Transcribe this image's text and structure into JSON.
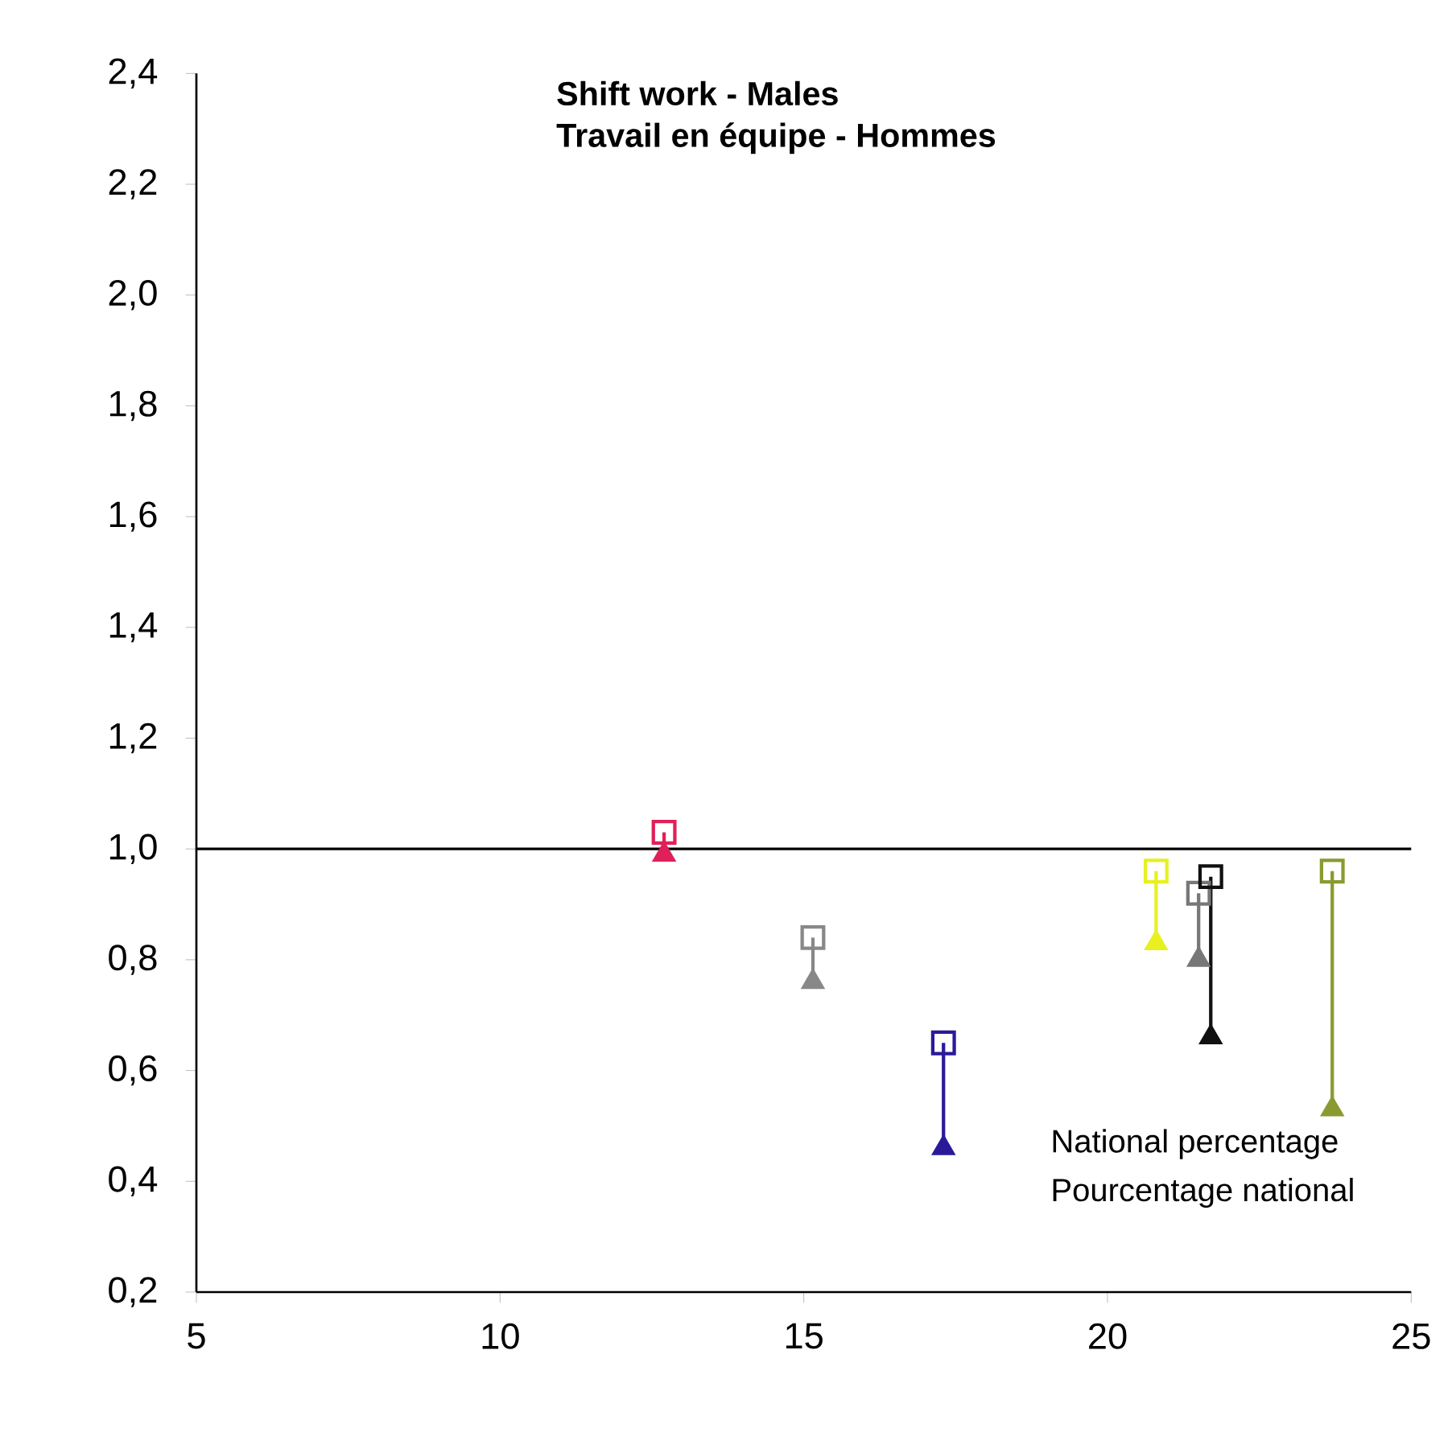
{
  "chart_data": {
    "type": "scatter",
    "title": "Shift work - Males",
    "subtitle": "Travail en équipe - Hommes",
    "xlim": [
      5,
      25
    ],
    "xticks": [
      5,
      10,
      15,
      20,
      25
    ],
    "ylim": [
      0.2,
      2.4
    ],
    "yticks": [
      {
        "value": 0.2,
        "label": "0,2"
      },
      {
        "value": 0.4,
        "label": "0,4"
      },
      {
        "value": 0.6,
        "label": "0,6"
      },
      {
        "value": 0.8,
        "label": "0,8"
      },
      {
        "value": 1.0,
        "label": "1,0"
      },
      {
        "value": 1.2,
        "label": "1,2"
      },
      {
        "value": 1.4,
        "label": "1,4"
      },
      {
        "value": 1.6,
        "label": "1,6"
      },
      {
        "value": 1.8,
        "label": "1,8"
      },
      {
        "value": 2.0,
        "label": "2,0"
      },
      {
        "value": 2.2,
        "label": "2,2"
      },
      {
        "value": 2.4,
        "label": "2,4"
      }
    ],
    "grid": false,
    "ref_lines": [
      {
        "axis": "y",
        "value": 1.0,
        "color": "#000000"
      }
    ],
    "annotations": [
      "National percentage",
      "Pourcentage national"
    ],
    "series": [
      {
        "type": "line",
        "color": "#e0205a",
        "x": [
          12.7,
          12.7
        ],
        "values": [
          0.99,
          1.03
        ]
      },
      {
        "type": "line",
        "color": "#888888",
        "x": [
          15.15,
          15.15
        ],
        "values": [
          0.76,
          0.84
        ]
      },
      {
        "type": "line",
        "color": "#2a1a9a",
        "x": [
          17.3,
          17.3
        ],
        "values": [
          0.46,
          0.65
        ]
      },
      {
        "type": "line",
        "color": "#e8f020",
        "x": [
          20.8,
          20.8
        ],
        "values": [
          0.83,
          0.96
        ]
      },
      {
        "type": "line",
        "color": "#777777",
        "x": [
          21.5,
          21.5
        ],
        "values": [
          0.8,
          0.92
        ]
      },
      {
        "type": "line",
        "color": "#111111",
        "x": [
          21.7,
          21.7
        ],
        "values": [
          0.66,
          0.95
        ]
      },
      {
        "type": "line",
        "color": "#8a9a30",
        "x": [
          23.7,
          23.7
        ],
        "values": [
          0.53,
          0.96
        ]
      },
      {
        "marker": "square",
        "x": [
          12.7,
          15.15,
          17.3,
          20.8,
          21.5,
          21.7,
          23.7
        ],
        "values": [
          1.03,
          0.84,
          0.65,
          0.96,
          0.92,
          0.95,
          0.96
        ],
        "colors": [
          "#e0205a",
          "#888888",
          "#2a1a9a",
          "#e8f020",
          "#777777",
          "#111111",
          "#8a9a30"
        ]
      },
      {
        "marker": "triangle",
        "x": [
          12.7,
          15.15,
          17.3,
          20.8,
          21.5,
          21.7,
          23.7
        ],
        "values": [
          0.99,
          0.76,
          0.46,
          0.83,
          0.8,
          0.66,
          0.53
        ],
        "colors": [
          "#e0205a",
          "#888888",
          "#2a1a9a",
          "#e8f020",
          "#777777",
          "#111111",
          "#8a9a30"
        ]
      }
    ]
  }
}
